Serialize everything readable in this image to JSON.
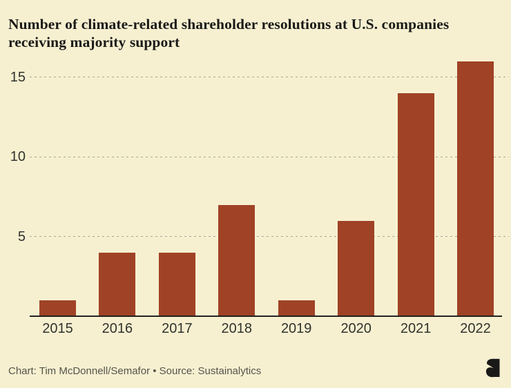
{
  "chart": {
    "title_lines": [
      "Number of climate-related shareholder resolutions at U.S. companies",
      "receiving majority support"
    ],
    "caption": "Chart: Tim McDonnell/Semafor • Source: Sustainalytics",
    "logo": "semafor-s-logo"
  },
  "chart_data": {
    "type": "bar",
    "title": "Number of climate-related shareholder resolutions at U.S. companies receiving majority support",
    "categories": [
      "2015",
      "2016",
      "2017",
      "2018",
      "2019",
      "2020",
      "2021",
      "2022"
    ],
    "values": [
      1,
      4,
      4,
      7,
      1,
      6,
      14,
      16
    ],
    "xlabel": "",
    "ylabel": "",
    "yticks": [
      5,
      10,
      15
    ],
    "ylim": [
      0,
      16
    ],
    "grid": "horizontal dashed gridlines at yticks",
    "legend": "none",
    "credit": "Chart: Tim McDonnell/Semafor",
    "source": "Source: Sustainalytics",
    "colors": {
      "bar": "#a04226",
      "background": "#f6f0d1",
      "gridline": "#a8a496",
      "axis_line": "#23221e",
      "tick_label": "#32322d",
      "title_text": "#1a1a17",
      "caption_text": "#55544b",
      "logo": "#191917"
    }
  }
}
